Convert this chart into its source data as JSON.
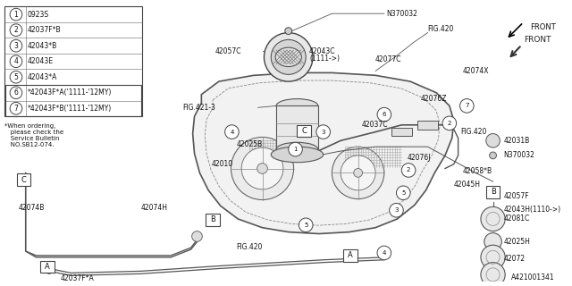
{
  "bg_color": "#ffffff",
  "diagram_id": "A421001341",
  "legend_items": [
    {
      "num": "1",
      "part": "0923S"
    },
    {
      "num": "2",
      "part": "42037F*B"
    },
    {
      "num": "3",
      "part": "42043*B"
    },
    {
      "num": "4",
      "part": "42043E"
    },
    {
      "num": "5",
      "part": "42043*A"
    },
    {
      "num": "6",
      "part": "*42043F*A('1111-'12MY)"
    },
    {
      "num": "7",
      "part": "*42043F*B('1111-'12MY)"
    }
  ],
  "note": "*When ordering,\n   please check the\n   Service Bulletin\n   NO.SB12-074.",
  "fig_size": [
    6.4,
    3.2
  ],
  "dpi": 100
}
